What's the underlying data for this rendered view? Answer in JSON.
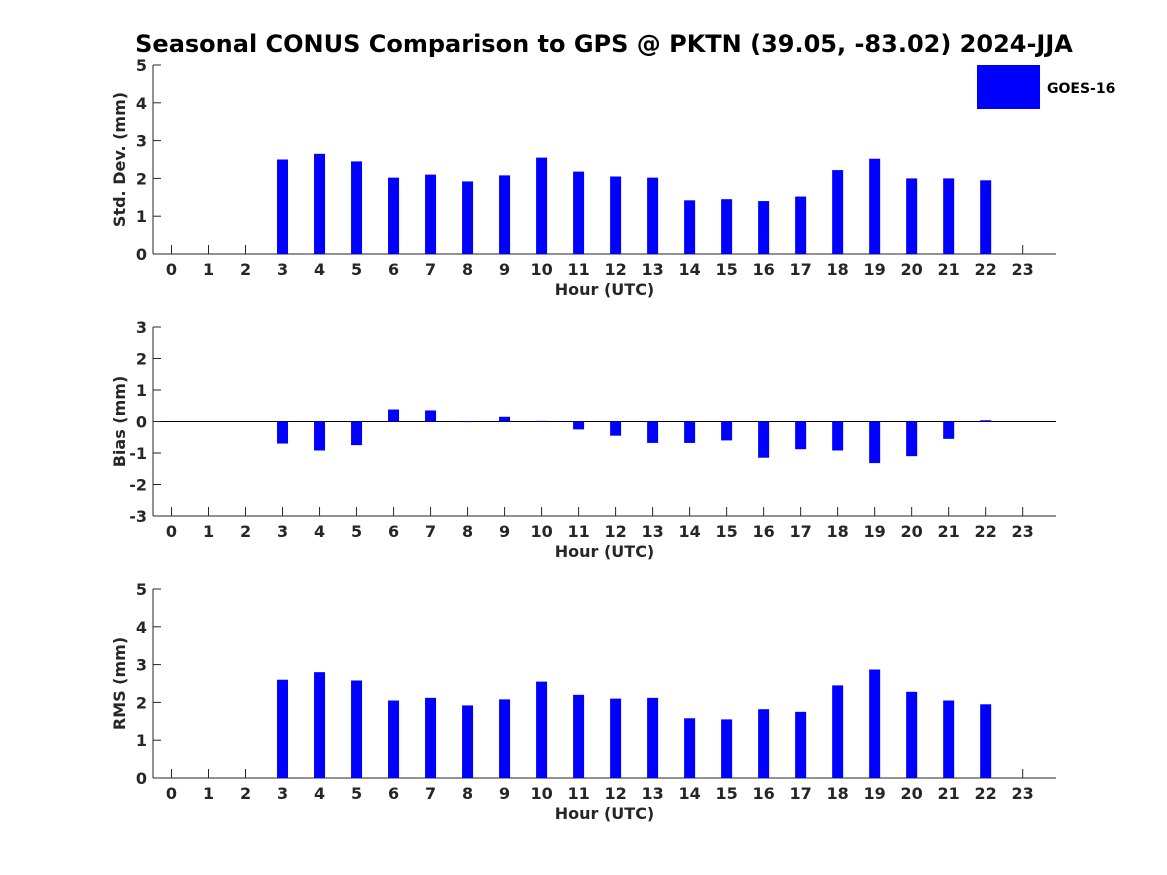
{
  "title": "Seasonal CONUS Comparison to GPS @ PKTN (39.05, -83.02) 2024-JJA",
  "legend": {
    "label": "GOES-16",
    "color": "#0000ff",
    "position": "top-right"
  },
  "chart_data": [
    {
      "type": "bar",
      "xlabel": "Hour (UTC)",
      "ylabel": "Std. Dev. (mm)",
      "xlim": [
        -0.5,
        23.9
      ],
      "ylim": [
        0,
        5
      ],
      "yticks": [
        "0",
        "1",
        "2",
        "3",
        "4",
        "5"
      ],
      "categories": [
        "0",
        "1",
        "2",
        "3",
        "4",
        "5",
        "6",
        "7",
        "8",
        "9",
        "10",
        "11",
        "12",
        "13",
        "14",
        "15",
        "16",
        "17",
        "18",
        "19",
        "20",
        "21",
        "22",
        "23"
      ],
      "series": [
        {
          "name": "GOES-16",
          "values": [
            null,
            null,
            null,
            2.5,
            2.65,
            2.45,
            2.02,
            2.1,
            1.92,
            2.08,
            2.55,
            2.18,
            2.05,
            2.02,
            1.42,
            1.45,
            1.4,
            1.52,
            2.22,
            2.52,
            2.0,
            2.0,
            1.95,
            null
          ]
        }
      ],
      "grid": false
    },
    {
      "type": "bar",
      "xlabel": "Hour (UTC)",
      "ylabel": "Bias (mm)",
      "xlim": [
        -0.5,
        23.9
      ],
      "ylim": [
        -3,
        3
      ],
      "yticks": [
        "-3",
        "-2",
        "-1",
        "0",
        "1",
        "2",
        "3"
      ],
      "categories": [
        "0",
        "1",
        "2",
        "3",
        "4",
        "5",
        "6",
        "7",
        "8",
        "9",
        "10",
        "11",
        "12",
        "13",
        "14",
        "15",
        "16",
        "17",
        "18",
        "19",
        "20",
        "21",
        "22",
        "23"
      ],
      "series": [
        {
          "name": "GOES-16",
          "values": [
            null,
            null,
            null,
            -0.7,
            -0.92,
            -0.75,
            0.38,
            0.35,
            0.0,
            0.15,
            0.02,
            -0.25,
            -0.45,
            -0.68,
            -0.68,
            -0.6,
            -1.15,
            -0.88,
            -0.92,
            -1.32,
            -1.1,
            -0.55,
            0.04,
            null
          ]
        }
      ],
      "grid": false
    },
    {
      "type": "bar",
      "xlabel": "Hour (UTC)",
      "ylabel": "RMS (mm)",
      "xlim": [
        -0.5,
        23.9
      ],
      "ylim": [
        0,
        5
      ],
      "yticks": [
        "0",
        "1",
        "2",
        "3",
        "4",
        "5"
      ],
      "categories": [
        "0",
        "1",
        "2",
        "3",
        "4",
        "5",
        "6",
        "7",
        "8",
        "9",
        "10",
        "11",
        "12",
        "13",
        "14",
        "15",
        "16",
        "17",
        "18",
        "19",
        "20",
        "21",
        "22",
        "23"
      ],
      "series": [
        {
          "name": "GOES-16",
          "values": [
            null,
            null,
            null,
            2.6,
            2.8,
            2.58,
            2.05,
            2.12,
            1.92,
            2.08,
            2.55,
            2.2,
            2.1,
            2.12,
            1.58,
            1.55,
            1.82,
            1.75,
            2.45,
            2.87,
            2.28,
            2.05,
            1.95,
            null
          ]
        }
      ],
      "grid": false
    }
  ]
}
